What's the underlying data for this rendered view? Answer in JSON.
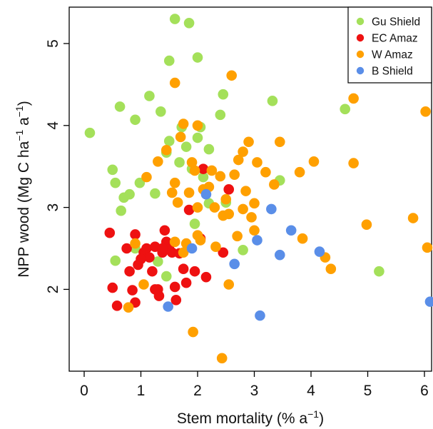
{
  "chart_data": {
    "type": "scatter",
    "xlabel_main": "Stem mortality (% a",
    "xlabel_sup": "−1",
    "xlabel_end": ")",
    "ylabel_main": "NPP wood (Mg C ha",
    "ylabel_sup1": "−1",
    "ylabel_mid": " a",
    "ylabel_sup2": "−1",
    "ylabel_end": ")",
    "xlim": [
      0,
      6.2
    ],
    "ylim": [
      1.0,
      5.5
    ],
    "xticks": [
      0,
      1,
      2,
      3,
      4,
      5,
      6
    ],
    "yticks": [
      2,
      3,
      4,
      5
    ],
    "legend_position": "top-right",
    "grid": false,
    "series": [
      {
        "name": "Gu Shield",
        "color": "#a4e05a",
        "points": [
          [
            0.1,
            3.91
          ],
          [
            0.63,
            4.23
          ],
          [
            0.7,
            3.12
          ],
          [
            0.5,
            3.46
          ],
          [
            0.55,
            3.3
          ],
          [
            0.65,
            2.96
          ],
          [
            0.8,
            3.16
          ],
          [
            0.9,
            4.07
          ],
          [
            0.98,
            3.3
          ],
          [
            1.15,
            4.36
          ],
          [
            1.35,
            4.17
          ],
          [
            1.25,
            3.17
          ],
          [
            1.5,
            4.79
          ],
          [
            1.45,
            3.67
          ],
          [
            1.6,
            5.3
          ],
          [
            1.5,
            3.81
          ],
          [
            1.68,
            3.55
          ],
          [
            1.72,
            3.98
          ],
          [
            1.8,
            3.74
          ],
          [
            1.85,
            5.25
          ],
          [
            1.9,
            3.47
          ],
          [
            1.95,
            2.8
          ],
          [
            2.0,
            4.83
          ],
          [
            2.05,
            3.98
          ],
          [
            2.0,
            3.85
          ],
          [
            2.1,
            3.37
          ],
          [
            2.2,
            3.71
          ],
          [
            2.2,
            3.05
          ],
          [
            2.4,
            4.13
          ],
          [
            2.45,
            4.38
          ],
          [
            2.5,
            3.06
          ],
          [
            2.8,
            2.48
          ],
          [
            1.3,
            2.34
          ],
          [
            1.45,
            2.16
          ],
          [
            3.32,
            4.3
          ],
          [
            3.45,
            3.33
          ],
          [
            4.6,
            4.2
          ],
          [
            5.2,
            2.22
          ],
          [
            0.55,
            2.35
          ],
          [
            0.9,
            2.5
          ]
        ]
      },
      {
        "name": "EC Amaz",
        "color": "#ee1111",
        "points": [
          [
            0.45,
            2.69
          ],
          [
            0.5,
            2.02
          ],
          [
            0.58,
            1.8
          ],
          [
            0.75,
            2.5
          ],
          [
            0.8,
            2.22
          ],
          [
            0.85,
            1.99
          ],
          [
            0.9,
            2.67
          ],
          [
            0.9,
            1.84
          ],
          [
            0.95,
            2.3
          ],
          [
            1.05,
            2.45
          ],
          [
            1.1,
            2.5
          ],
          [
            1.15,
            2.39
          ],
          [
            1.2,
            2.22
          ],
          [
            1.25,
            2.52
          ],
          [
            1.3,
            2.0
          ],
          [
            1.32,
            1.92
          ],
          [
            1.38,
            2.45
          ],
          [
            1.42,
            2.72
          ],
          [
            1.45,
            2.58
          ],
          [
            1.5,
            2.49
          ],
          [
            1.55,
            2.45
          ],
          [
            1.6,
            2.03
          ],
          [
            1.62,
            1.87
          ],
          [
            1.68,
            2.44
          ],
          [
            1.75,
            2.25
          ],
          [
            1.8,
            2.08
          ],
          [
            1.85,
            2.97
          ],
          [
            1.95,
            2.22
          ],
          [
            2.05,
            2.62
          ],
          [
            2.1,
            3.47
          ],
          [
            2.15,
            2.15
          ],
          [
            2.45,
            2.45
          ],
          [
            2.55,
            3.22
          ],
          [
            1.38,
            2.5
          ],
          [
            1.0,
            2.37
          ],
          [
            1.25,
            2.0
          ]
        ]
      },
      {
        "name": "W Amaz",
        "color": "#ffa000",
        "points": [
          [
            0.78,
            1.78
          ],
          [
            0.9,
            2.56
          ],
          [
            1.1,
            3.37
          ],
          [
            1.3,
            3.56
          ],
          [
            1.45,
            3.7
          ],
          [
            1.55,
            3.18
          ],
          [
            1.6,
            4.52
          ],
          [
            1.6,
            3.3
          ],
          [
            1.65,
            3.06
          ],
          [
            1.7,
            3.86
          ],
          [
            1.75,
            4.02
          ],
          [
            1.8,
            2.56
          ],
          [
            1.85,
            3.18
          ],
          [
            1.9,
            3.55
          ],
          [
            1.95,
            3.45
          ],
          [
            2.0,
            3.0
          ],
          [
            2.0,
            2.66
          ],
          [
            2.05,
            2.6
          ],
          [
            2.1,
            3.22
          ],
          [
            2.2,
            3.25
          ],
          [
            2.25,
            3.45
          ],
          [
            2.3,
            3.0
          ],
          [
            2.32,
            2.52
          ],
          [
            2.4,
            3.38
          ],
          [
            2.45,
            2.9
          ],
          [
            2.5,
            3.1
          ],
          [
            2.55,
            2.92
          ],
          [
            2.55,
            2.06
          ],
          [
            2.6,
            4.61
          ],
          [
            2.65,
            3.4
          ],
          [
            2.7,
            2.65
          ],
          [
            2.72,
            3.58
          ],
          [
            2.8,
            3.68
          ],
          [
            2.8,
            2.98
          ],
          [
            2.85,
            3.2
          ],
          [
            2.9,
            3.8
          ],
          [
            2.95,
            2.88
          ],
          [
            3.0,
            2.72
          ],
          [
            3.0,
            3.05
          ],
          [
            3.05,
            3.55
          ],
          [
            3.2,
            3.43
          ],
          [
            3.35,
            3.28
          ],
          [
            3.45,
            3.8
          ],
          [
            3.8,
            3.43
          ],
          [
            3.85,
            2.62
          ],
          [
            4.05,
            3.56
          ],
          [
            4.25,
            2.39
          ],
          [
            4.35,
            2.25
          ],
          [
            4.75,
            4.33
          ],
          [
            4.75,
            3.54
          ],
          [
            4.98,
            2.79
          ],
          [
            5.8,
            2.87
          ],
          [
            6.02,
            4.17
          ],
          [
            6.05,
            2.51
          ],
          [
            2.43,
            1.16
          ],
          [
            1.92,
            1.48
          ],
          [
            1.75,
            2.45
          ],
          [
            1.05,
            2.06
          ],
          [
            2.0,
            4.0
          ],
          [
            1.6,
            2.58
          ]
        ]
      },
      {
        "name": "B Shield",
        "color": "#5a8ee8",
        "points": [
          [
            1.48,
            1.79
          ],
          [
            1.9,
            2.5
          ],
          [
            2.15,
            3.16
          ],
          [
            2.65,
            2.31
          ],
          [
            3.1,
            1.68
          ],
          [
            3.3,
            2.98
          ],
          [
            3.45,
            2.42
          ],
          [
            3.65,
            2.72
          ],
          [
            4.15,
            2.46
          ],
          [
            6.1,
            1.85
          ],
          [
            3.05,
            2.6
          ]
        ]
      }
    ]
  }
}
